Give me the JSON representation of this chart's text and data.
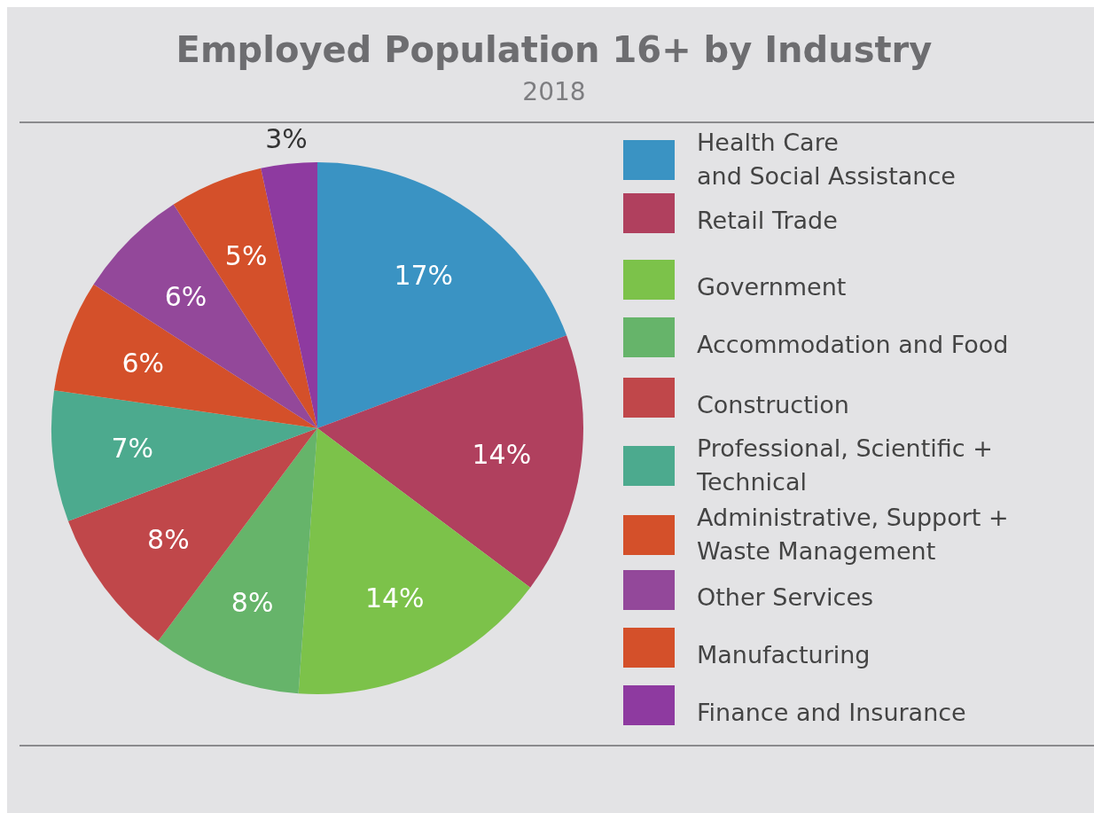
{
  "chart_data": {
    "type": "pie",
    "title": "Employed Population 16+ by Industry",
    "subtitle": "2018",
    "categories": [
      "Health Care\nand Social Assistance",
      "Retail Trade",
      "Government",
      "Accommodation and Food",
      "Construction",
      "Professional, Scientific +\nTechnical",
      "Administrative, Support +\nWaste Management",
      "Other Services",
      "Manufacturing",
      "Finance and Insurance"
    ],
    "values": [
      17,
      14,
      14,
      8,
      8,
      7,
      6,
      6,
      5,
      3
    ],
    "value_labels": [
      "17%",
      "14%",
      "14%",
      "8%",
      "8%",
      "7%",
      "6%",
      "6%",
      "5%",
      "3%"
    ],
    "colors": [
      "#3a93c3",
      "#b0405e",
      "#7cc24a",
      "#66b46a",
      "#c0474a",
      "#4caa8e",
      "#d4502a",
      "#93489a",
      "#d4502a",
      "#8e3aa0"
    ],
    "legend": "right"
  }
}
